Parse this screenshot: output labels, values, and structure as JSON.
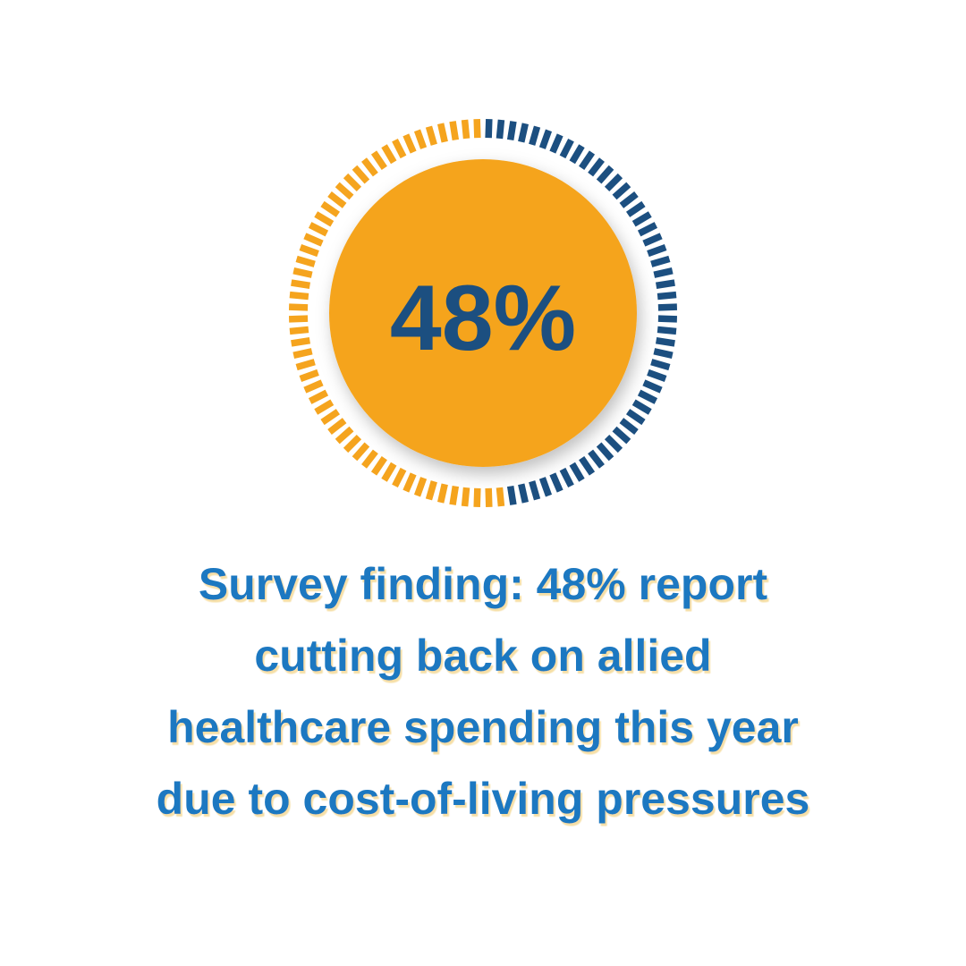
{
  "chart_data": {
    "type": "gauge",
    "value": 48,
    "value_label": "48%",
    "lim": [
      0,
      100
    ],
    "color": "#1c4f80",
    "track_color": "#f5a41e",
    "center_color": "#f5a41e",
    "label_color": "#1c4f80",
    "caption": [
      "Survey finding: 48% report",
      "cutting back on allied",
      "healthcare spending this year",
      "due to cost-of-living pressures"
    ],
    "caption_color": "#1f78c1"
  }
}
